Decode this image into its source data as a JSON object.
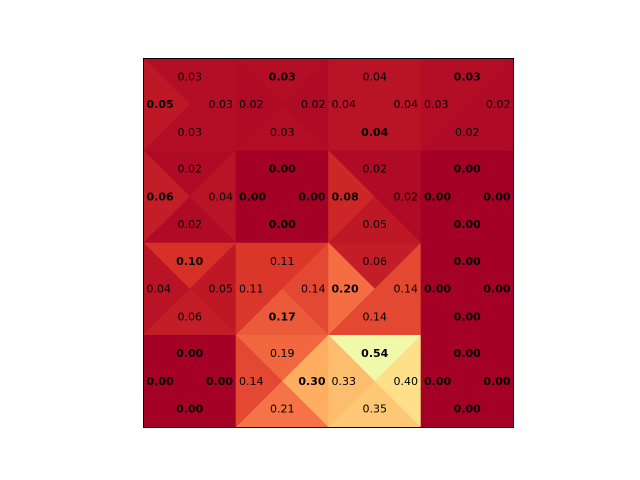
{
  "chart_data": {
    "type": "heatmap",
    "subtype": "q-value-grid",
    "rows": 4,
    "cols": 4,
    "colormap": "RdYlGn",
    "value_range": [
      0,
      1
    ],
    "grid": false,
    "cells": [
      [
        {
          "up": 0.03,
          "left": 0.05,
          "right": 0.03,
          "down": 0.03,
          "best": [
            "left"
          ]
        },
        {
          "up": 0.03,
          "left": 0.02,
          "right": 0.02,
          "down": 0.03,
          "best": [
            "up"
          ]
        },
        {
          "up": 0.04,
          "left": 0.04,
          "right": 0.04,
          "down": 0.04,
          "best": [
            "down"
          ]
        },
        {
          "up": 0.03,
          "left": 0.03,
          "right": 0.02,
          "down": 0.02,
          "best": [
            "up"
          ]
        }
      ],
      [
        {
          "up": 0.02,
          "left": 0.06,
          "right": 0.04,
          "down": 0.02,
          "best": [
            "left"
          ]
        },
        {
          "up": 0.0,
          "left": 0.0,
          "right": 0.0,
          "down": 0.0,
          "best": [
            "up",
            "left",
            "right",
            "down"
          ]
        },
        {
          "up": 0.02,
          "left": 0.08,
          "right": 0.02,
          "down": 0.05,
          "best": [
            "left"
          ]
        },
        {
          "up": 0.0,
          "left": 0.0,
          "right": 0.0,
          "down": 0.0,
          "best": [
            "up",
            "left",
            "right",
            "down"
          ]
        }
      ],
      [
        {
          "up": 0.1,
          "left": 0.04,
          "right": 0.05,
          "down": 0.06,
          "best": [
            "up"
          ]
        },
        {
          "up": 0.11,
          "left": 0.11,
          "right": 0.14,
          "down": 0.17,
          "best": [
            "down"
          ]
        },
        {
          "up": 0.06,
          "left": 0.2,
          "right": 0.14,
          "down": 0.14,
          "best": [
            "left"
          ]
        },
        {
          "up": 0.0,
          "left": 0.0,
          "right": 0.0,
          "down": 0.0,
          "best": [
            "up",
            "left",
            "right",
            "down"
          ]
        }
      ],
      [
        {
          "up": 0.0,
          "left": 0.0,
          "right": 0.0,
          "down": 0.0,
          "best": [
            "up",
            "left",
            "right",
            "down"
          ]
        },
        {
          "up": 0.19,
          "left": 0.14,
          "right": 0.3,
          "down": 0.21,
          "best": [
            "right"
          ]
        },
        {
          "up": 0.54,
          "left": 0.33,
          "right": 0.4,
          "down": 0.35,
          "best": [
            "up"
          ]
        },
        {
          "up": 0.0,
          "left": 0.0,
          "right": 0.0,
          "down": 0.0,
          "best": [
            "up",
            "left",
            "right",
            "down"
          ]
        }
      ]
    ]
  }
}
